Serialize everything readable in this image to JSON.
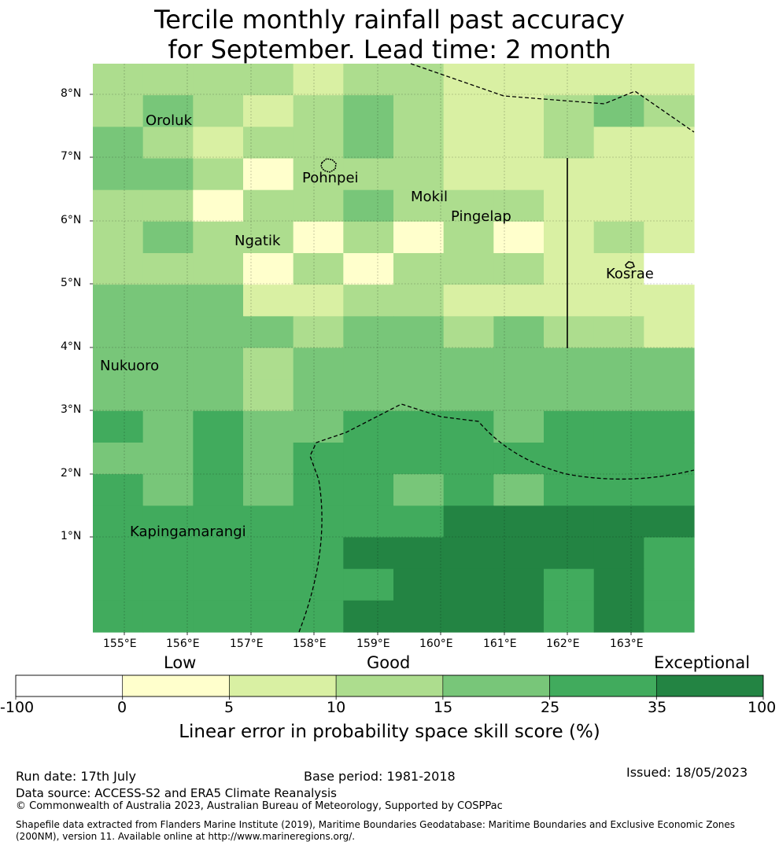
{
  "title": {
    "line1": "Tercile monthly rainfall past accuracy",
    "line2": "for September. Lead time: 2 month"
  },
  "map": {
    "lat_labels": [
      "8°N",
      "7°N",
      "6°N",
      "5°N",
      "4°N",
      "3°N",
      "2°N",
      "1°N"
    ],
    "lon_labels": [
      "155°E",
      "156°E",
      "157°E",
      "158°E",
      "159°E",
      "160°E",
      "161°E",
      "162°E",
      "163°E"
    ],
    "places": [
      {
        "name": "Oroluk"
      },
      {
        "name": "Pohnpei"
      },
      {
        "name": "Mokil"
      },
      {
        "name": "Pingelap"
      },
      {
        "name": "Ngatik"
      },
      {
        "name": "Kosrae"
      },
      {
        "name": "Nukuoro"
      },
      {
        "name": "Kapingamarangi"
      }
    ],
    "grid_levels": [
      [
        3,
        3,
        3,
        3,
        2,
        3,
        3,
        2,
        2,
        2,
        2,
        2
      ],
      [
        3,
        4,
        3,
        2,
        3,
        4,
        3,
        2,
        2,
        3,
        4,
        3
      ],
      [
        4,
        3,
        2,
        3,
        3,
        4,
        3,
        2,
        2,
        3,
        2,
        2
      ],
      [
        4,
        4,
        3,
        1,
        3,
        3,
        3,
        2,
        2,
        2,
        2,
        2
      ],
      [
        3,
        3,
        1,
        3,
        3,
        4,
        3,
        3,
        3,
        2,
        2,
        2
      ],
      [
        3,
        4,
        3,
        3,
        1,
        3,
        1,
        3,
        1,
        2,
        3,
        2
      ],
      [
        3,
        3,
        3,
        1,
        3,
        1,
        3,
        3,
        3,
        2,
        2,
        0
      ],
      [
        4,
        4,
        4,
        2,
        2,
        3,
        3,
        2,
        2,
        2,
        2,
        2
      ],
      [
        4,
        4,
        4,
        4,
        3,
        4,
        4,
        3,
        4,
        3,
        3,
        2
      ],
      [
        4,
        4,
        4,
        3,
        4,
        4,
        4,
        4,
        4,
        4,
        4,
        4
      ],
      [
        4,
        4,
        4,
        3,
        4,
        4,
        4,
        4,
        4,
        4,
        4,
        4
      ],
      [
        5,
        4,
        5,
        4,
        4,
        5,
        5,
        5,
        4,
        5,
        5,
        5
      ],
      [
        4,
        4,
        5,
        4,
        5,
        5,
        5,
        5,
        5,
        5,
        5,
        5
      ],
      [
        5,
        4,
        5,
        4,
        5,
        5,
        4,
        5,
        4,
        5,
        5,
        5
      ],
      [
        5,
        5,
        5,
        5,
        5,
        5,
        5,
        6,
        6,
        6,
        6,
        6
      ],
      [
        5,
        5,
        5,
        5,
        5,
        6,
        6,
        6,
        6,
        6,
        6,
        5
      ],
      [
        5,
        5,
        5,
        5,
        5,
        5,
        6,
        6,
        6,
        5,
        6,
        5
      ],
      [
        5,
        5,
        5,
        5,
        5,
        6,
        6,
        6,
        6,
        5,
        6,
        5
      ]
    ]
  },
  "colorbar": {
    "categories": [
      "Low",
      "Good",
      "Exceptional"
    ],
    "ticks": [
      "-100",
      "0",
      "5",
      "10",
      "15",
      "25",
      "35",
      "100"
    ],
    "colors": [
      "#ffffff",
      "#ffffcc",
      "#d9f0a3",
      "#addd8e",
      "#78c679",
      "#41ab5d",
      "#238443"
    ],
    "label": "Linear error in probability space skill score (%)"
  },
  "footer": {
    "run_date": "Run date: 17th July",
    "base_period": "Base period: 1981-2018",
    "issued": "Issued: 18/05/2023",
    "data_source": "Data source: ACCESS-S2 and ERA5 Climate Reanalysis",
    "copyright": "© Commonwealth of Australia 2023, Australian Bureau of Meteorology, Supported by COSPPac",
    "shapefile_1": "Shapefile data extracted from Flanders Marine Institute (2019), Maritime Boundaries Geodatabase: Maritime Boundaries and Exclusive Economic Zones",
    "shapefile_2": "(200NM), version 11. Available online at http://www.marineregions.org/."
  }
}
